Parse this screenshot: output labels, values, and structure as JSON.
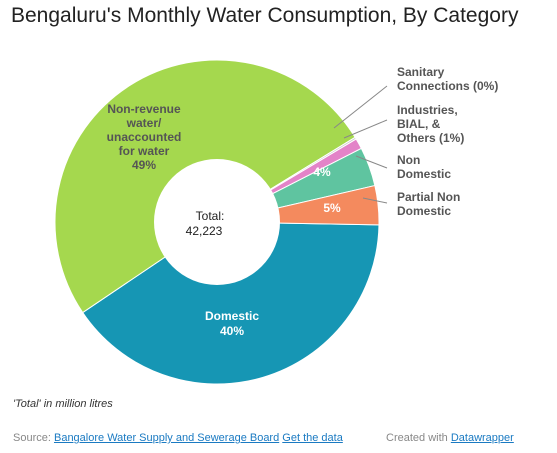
{
  "title": "Bengaluru's Monthly Water Consumption, By Category",
  "chart_data": {
    "type": "pie",
    "variant": "donut",
    "title": "Bengaluru's Monthly Water Consumption, By Category",
    "center_label": "Total:",
    "center_value": "42,223",
    "slices": [
      {
        "name": "Domestic",
        "percent": 40,
        "label_lines": [
          "Domestic",
          "40%"
        ],
        "color": "#1696b4",
        "label_color": "#ffffff",
        "label_position": "inside"
      },
      {
        "name": "Non-revenue water/ unaccounted for water",
        "percent": 49,
        "label_lines": [
          "Non-revenue",
          "water/",
          "unaccounted",
          "for water",
          "49%"
        ],
        "color": "#a5d84e",
        "label_color": "#555555",
        "label_position": "inside"
      },
      {
        "name": "Sanitary Connections",
        "percent": 0,
        "label_lines": [
          "Sanitary",
          "Connections (0%)"
        ],
        "color": "#cccccc",
        "label_position": "outside"
      },
      {
        "name": "Industries, BIAL, & Others",
        "percent": 1,
        "label_lines": [
          "Industries,",
          "BIAL, &",
          "Others (1%)"
        ],
        "color": "#e383c8",
        "label_position": "outside"
      },
      {
        "name": "Non Domestic",
        "percent": 4,
        "value_label": "4%",
        "label_lines": [
          "Non",
          "Domestic"
        ],
        "color": "#5fc4a0",
        "label_color": "#ffffff",
        "label_position": "outside"
      },
      {
        "name": "Partial Non Domestic",
        "percent": 5,
        "value_label": "5%",
        "label_lines": [
          "Partial Non",
          "Domestic"
        ],
        "color": "#f48a5e",
        "label_color": "#ffffff",
        "label_position": "outside"
      }
    ]
  },
  "note": "'Total' in million litres",
  "footer": {
    "source_prefix": "Source:",
    "source_link": "Bangalore Water Supply and Sewerage Board",
    "get_data": "Get the data",
    "created_with": "Created with",
    "datawrapper": "Datawrapper"
  }
}
